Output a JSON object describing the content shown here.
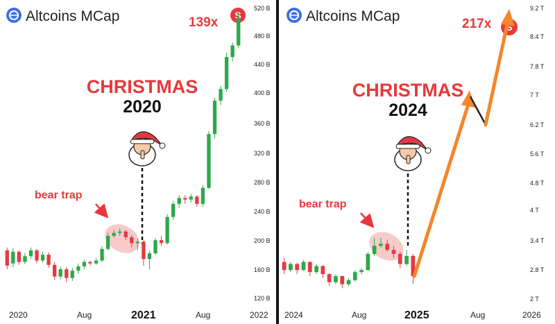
{
  "colors": {
    "up": "#2da84a",
    "down": "#e23b44",
    "accent_red": "#e8383b",
    "arrow_orange": "#f4862b",
    "brand_blue": "#3f6fe3",
    "trap_ellipse": "#f4a8a8"
  },
  "icons": {
    "brand": "altcoins-logo-icon",
    "badge": "s-coin-icon",
    "mascot": "santa-shush-icon"
  },
  "panels": [
    {
      "title": "Altcoins MCap",
      "multiplier": "139x",
      "badge_letter": "S",
      "christmas_word": "CHRISTMAS",
      "christmas_year": "2020",
      "annotation": "bear trap",
      "y_ticks": [
        "520 B",
        "480 B",
        "440 B",
        "400 B",
        "360 B",
        "320 B",
        "280 B",
        "240 B",
        "200 B",
        "160 B",
        "120 B"
      ],
      "x_ticks": [
        "2020",
        "Aug",
        "2021",
        "Aug",
        "2022"
      ]
    },
    {
      "title": "Altcoins MCap",
      "multiplier": "217x",
      "badge_letter": "S",
      "christmas_word": "CHRISTMAS",
      "christmas_year": "2024",
      "annotation": "bear trap",
      "y_ticks": [
        "9.2 T",
        "8.4 T",
        "7.8 T",
        "7 T",
        "6.2 T",
        "5.6 T",
        "4.8 T",
        "4 T",
        "3.4 T",
        "2.8 T",
        "2 T"
      ],
      "x_ticks": [
        "2024",
        "Aug",
        "2025",
        "Aug",
        "2026"
      ]
    }
  ],
  "chart_data": [
    {
      "type": "candlestick",
      "title": "Altcoins MCap",
      "unit": "billion USD",
      "ylim": [
        120,
        520
      ],
      "x_ticks": [
        "2020",
        "Aug",
        "2021",
        "Aug",
        "2022"
      ],
      "candles": [
        [
          186,
          165,
          190,
          160
        ],
        [
          168,
          184,
          189,
          163
        ],
        [
          184,
          170,
          186,
          166
        ],
        [
          170,
          178,
          182,
          167
        ],
        [
          178,
          186,
          190,
          174
        ],
        [
          186,
          172,
          188,
          168
        ],
        [
          172,
          180,
          184,
          169
        ],
        [
          180,
          166,
          183,
          162
        ],
        [
          166,
          150,
          170,
          145
        ],
        [
          150,
          160,
          164,
          146
        ],
        [
          160,
          148,
          163,
          142
        ],
        [
          148,
          158,
          162,
          144
        ],
        [
          158,
          164,
          168,
          154
        ],
        [
          164,
          170,
          173,
          160
        ],
        [
          170,
          168,
          172,
          165
        ],
        [
          168,
          172,
          175,
          166
        ],
        [
          172,
          188,
          192,
          170
        ],
        [
          188,
          206,
          210,
          186
        ],
        [
          206,
          210,
          214,
          203
        ],
        [
          210,
          212,
          216,
          206
        ],
        [
          212,
          204,
          214,
          200
        ],
        [
          204,
          196,
          207,
          190
        ],
        [
          196,
          198,
          202,
          186
        ],
        [
          198,
          174,
          200,
          165
        ],
        [
          174,
          182,
          186,
          160
        ],
        [
          182,
          200,
          203,
          180
        ],
        [
          200,
          196,
          206,
          192
        ],
        [
          196,
          232,
          236,
          194
        ],
        [
          232,
          250,
          254,
          228
        ],
        [
          250,
          258,
          262,
          244
        ],
        [
          258,
          256,
          262,
          250
        ],
        [
          256,
          260,
          264,
          252
        ],
        [
          260,
          250,
          262,
          246
        ],
        [
          250,
          272,
          276,
          246
        ],
        [
          272,
          346,
          350,
          270
        ],
        [
          346,
          392,
          396,
          340
        ],
        [
          392,
          408,
          412,
          386
        ],
        [
          408,
          452,
          458,
          404
        ],
        [
          452,
          468,
          472,
          446
        ],
        [
          468,
          506,
          514,
          464
        ]
      ],
      "annotation_window": [
        17,
        23
      ],
      "christmas_index": 22
    },
    {
      "type": "candlestick",
      "title": "Altcoins MCap",
      "unit": "trillion USD",
      "ylim": [
        2,
        9.2
      ],
      "x_ticks": [
        "2024",
        "Aug",
        "2025",
        "Aug",
        "2026"
      ],
      "candles": [
        [
          2.9,
          2.7,
          3.0,
          2.6
        ],
        [
          2.7,
          2.85,
          2.9,
          2.65
        ],
        [
          2.85,
          2.7,
          2.88,
          2.6
        ],
        [
          2.7,
          2.9,
          2.95,
          2.68
        ],
        [
          2.9,
          2.65,
          2.92,
          2.55
        ],
        [
          2.65,
          2.8,
          2.85,
          2.6
        ],
        [
          2.8,
          2.6,
          2.82,
          2.5
        ],
        [
          2.6,
          2.4,
          2.62,
          2.3
        ],
        [
          2.4,
          2.55,
          2.6,
          2.35
        ],
        [
          2.55,
          2.35,
          2.57,
          2.25
        ],
        [
          2.35,
          2.45,
          2.5,
          2.3
        ],
        [
          2.45,
          2.65,
          2.7,
          2.42
        ],
        [
          2.65,
          2.7,
          2.75,
          2.6
        ],
        [
          2.7,
          3.1,
          3.15,
          2.68
        ],
        [
          3.1,
          3.3,
          3.5,
          3.05
        ],
        [
          3.3,
          3.35,
          3.5,
          3.25
        ],
        [
          3.35,
          3.2,
          3.45,
          3.15
        ],
        [
          3.2,
          3.1,
          3.3,
          3.0
        ],
        [
          3.1,
          2.85,
          3.15,
          2.75
        ],
        [
          2.85,
          3.05,
          3.2,
          2.8
        ],
        [
          3.05,
          2.55,
          3.1,
          2.35
        ]
      ],
      "projection": [
        [
          2.9,
          7.1
        ],
        [
          6.3,
          9.1
        ]
      ],
      "annotation_window": [
        13,
        18
      ],
      "christmas_index": 19
    }
  ]
}
